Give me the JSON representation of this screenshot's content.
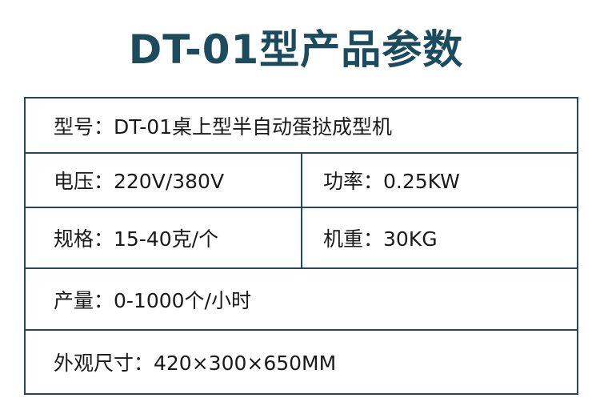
{
  "title": "DT-01型产品参数",
  "rows": [
    {
      "cells": [
        "型号：DT-01桌上型半自动蛋挞成型机"
      ]
    },
    {
      "cells": [
        "电压：220V/380V",
        "功率：0.25KW"
      ]
    },
    {
      "cells": [
        "规格：15-40克/个",
        "机重：30KG"
      ]
    },
    {
      "cells": [
        "产量：0-1000个/小时"
      ]
    },
    {
      "cells": [
        "外观尺寸：420×300×650MM"
      ]
    }
  ],
  "colors": {
    "title": "#1b4b5c",
    "border": "#24495a"
  }
}
